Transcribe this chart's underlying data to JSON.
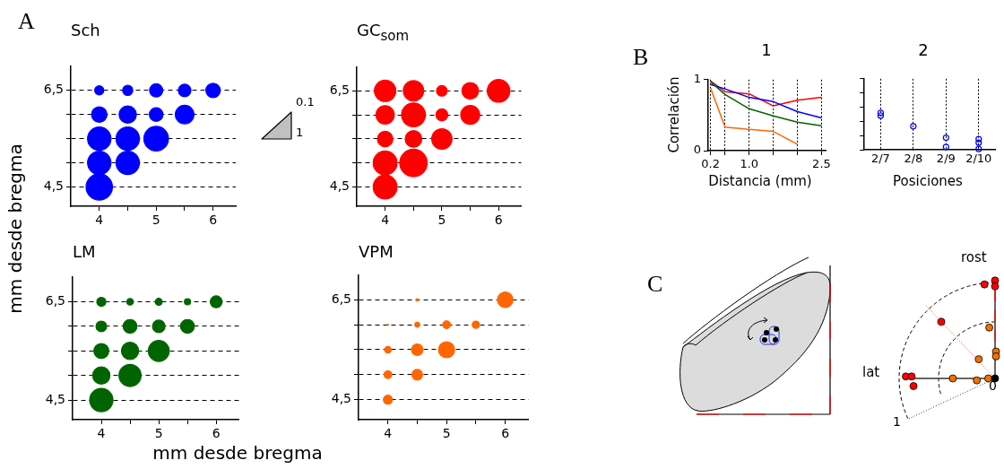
{
  "chart_data": [
    {
      "type": "bubble",
      "title": "Sch",
      "ylabel": "mm desde bregma",
      "annotations": [
        "A"
      ],
      "xlim": [
        3.5,
        6.4
      ],
      "ylim": [
        4.1,
        7.0
      ],
      "xticks": [
        4,
        {
          "value": 4.5,
          "label": null
        },
        5,
        {
          "value": 5.5,
          "label": null
        },
        6
      ],
      "yticks": [
        {
          "value": 4.5,
          "label": "4,5"
        },
        {
          "value": 5,
          "label": null
        },
        {
          "value": 5.5,
          "label": null
        },
        {
          "value": 6,
          "label": null
        },
        {
          "value": 6.5,
          "label": "6,5"
        }
      ],
      "grid": "y",
      "series": [
        {
          "color": "#0000ff",
          "x": [
            4,
            4.5,
            5,
            5.5,
            6,
            4,
            4.5,
            5,
            5.5,
            4,
            4.5,
            5,
            4,
            4.5,
            4
          ],
          "values": [
            6.5,
            6.5,
            6.5,
            6.5,
            6.5,
            6,
            6,
            6,
            6,
            5.5,
            5.5,
            5.5,
            5,
            5,
            4.5
          ],
          "sizes": [
            0.12,
            0.15,
            0.25,
            0.23,
            0.3,
            0.35,
            0.43,
            0.27,
            0.5,
            0.79,
            0.79,
            0.87,
            0.79,
            0.79,
            1
          ]
        }
      ]
    },
    {
      "type": "other",
      "annotations": [
        "0.1",
        "1"
      ]
    },
    {
      "type": "bubble",
      "title": "GC$_{som}$",
      "xlim": [
        3.5,
        6.4
      ],
      "ylim": [
        4.1,
        7.0
      ],
      "xticks": [
        4,
        {
          "value": 4.5,
          "label": null
        },
        5,
        {
          "value": 5.5,
          "label": null
        },
        6
      ],
      "yticks": [
        {
          "value": 4.5,
          "label": "4,5"
        },
        {
          "value": 5,
          "label": null
        },
        {
          "value": 5.5,
          "label": null
        },
        {
          "value": 6,
          "label": null
        },
        {
          "value": 6.5,
          "label": "6,5"
        }
      ],
      "grid": "y",
      "series": [
        {
          "color": "#ff0000",
          "x": [
            4,
            4.5,
            5,
            5.5,
            6,
            4,
            4.5,
            5,
            5.5,
            4,
            4.5,
            5,
            4,
            4.5,
            4
          ],
          "values": [
            6.5,
            6.5,
            6.5,
            6.5,
            6.5,
            6,
            6,
            6,
            6,
            5.5,
            5.5,
            5.5,
            5,
            5,
            4.5
          ],
          "sizes": [
            0.61,
            0.55,
            0.15,
            0.37,
            0.68,
            0.45,
            0.76,
            0.19,
            0.48,
            0.32,
            0.37,
            0.55,
            0.76,
            1,
            0.76
          ]
        }
      ]
    },
    {
      "type": "bubble",
      "title": "LM",
      "xlabel": "mm desde bregma",
      "xlim": [
        3.5,
        6.4
      ],
      "ylim": [
        4.1,
        7.0
      ],
      "xticks": [
        4,
        {
          "value": 4.5,
          "label": null
        },
        5,
        {
          "value": 5.5,
          "label": null
        },
        6
      ],
      "yticks": [
        {
          "value": 4.5,
          "label": "4,5"
        },
        {
          "value": 5,
          "label": null
        },
        {
          "value": 5.5,
          "label": null
        },
        {
          "value": 6,
          "label": null
        },
        {
          "value": 6.5,
          "label": "6,5"
        }
      ],
      "grid": "y",
      "series": [
        {
          "color": "#006400",
          "x": [
            4,
            4.5,
            5,
            5.5,
            6,
            4,
            4.5,
            5,
            5.5,
            4,
            4.5,
            5,
            4,
            4.5,
            4
          ],
          "values": [
            6.5,
            6.5,
            6.5,
            6.5,
            6.5,
            6,
            6,
            6,
            6,
            5.5,
            5.5,
            5.5,
            5,
            5,
            4.5
          ],
          "sizes": [
            0.15,
            0.08,
            0.09,
            0.07,
            0.26,
            0.21,
            0.35,
            0.29,
            0.35,
            0.41,
            0.55,
            0.81,
            0.55,
            0.9,
            1
          ]
        }
      ]
    },
    {
      "type": "bubble",
      "title": "VPM",
      "xlim": [
        3.5,
        6.4
      ],
      "ylim": [
        4.1,
        7.0
      ],
      "xticks": [
        4,
        {
          "value": 4.5,
          "label": null
        },
        5,
        {
          "value": 5.5,
          "label": null
        },
        6
      ],
      "yticks": [
        {
          "value": 4.5,
          "label": "4,5"
        },
        {
          "value": 5,
          "label": null
        },
        {
          "value": 5.5,
          "label": null
        },
        {
          "value": 6,
          "label": null
        },
        {
          "value": 6.5,
          "label": "6,5"
        }
      ],
      "grid": "y",
      "series": [
        {
          "color": "#ff6600",
          "x": [
            4.5,
            6,
            4,
            4.5,
            5,
            5.5,
            4,
            4.5,
            5,
            4,
            4.5,
            4
          ],
          "values": [
            6.5,
            6.5,
            6,
            6,
            6,
            6,
            5.5,
            5.5,
            5.5,
            5,
            5,
            4.5
          ],
          "sizes": [
            0.02,
            0.93,
            0.005,
            0.09,
            0.23,
            0.2,
            0.17,
            0.5,
            1,
            0.23,
            0.44,
            0.31
          ]
        }
      ]
    },
    {
      "type": "line",
      "title": "1",
      "xlabel": "Distancia (mm)",
      "ylabel": "Correlación",
      "annotations": [
        "B"
      ],
      "x": [
        0.2,
        0.5,
        1.0,
        1.5,
        2.0,
        2.5
      ],
      "xlim": [
        0.15,
        2.6
      ],
      "ylim": [
        0,
        1
      ],
      "xticks": [
        {
          "value": 0.2,
          "label": "0.2"
        },
        {
          "value": 0.5,
          "label": null
        },
        {
          "value": 1.0,
          "label": "1.0"
        },
        {
          "value": 1.5,
          "label": null
        },
        {
          "value": 2.0,
          "label": null
        },
        {
          "value": 2.5,
          "label": "2.5"
        }
      ],
      "yticks": [
        0,
        1
      ],
      "grid": "x",
      "series": [
        {
          "color": "#ff0000",
          "values": [
            0.98,
            0.83,
            0.8,
            0.63,
            0.71,
            0.75
          ]
        },
        {
          "color": "#0000ff",
          "values": [
            0.93,
            0.87,
            0.75,
            0.69,
            0.55,
            0.46
          ]
        },
        {
          "color": "#006400",
          "values": [
            0.97,
            0.79,
            0.59,
            0.49,
            0.4,
            0.35
          ]
        },
        {
          "color": "#ff6600",
          "values": [
            0.88,
            0.33,
            0.3,
            0.27,
            0.09,
            null
          ]
        }
      ]
    },
    {
      "type": "scatter",
      "title": "2",
      "xlabel": "Posiciones",
      "categories": [
        "2/7",
        "2/8",
        "2/9",
        "2/10"
      ],
      "ylim": [
        0,
        1
      ],
      "yticks": [
        {
          "value": 0,
          "label": null
        },
        {
          "value": 0.2,
          "label": null
        },
        {
          "value": 0.4,
          "label": null
        },
        {
          "value": 0.6,
          "label": null
        },
        {
          "value": 0.8,
          "label": null
        },
        {
          "value": 1,
          "label": null
        }
      ],
      "tick_labels": "x",
      "grid": "x",
      "marker": "circle",
      "series": [
        {
          "color": "#0000ff",
          "x": [
            "2/7",
            "2/7",
            "2/8",
            "2/9",
            "2/9",
            "2/10",
            "2/10",
            "2/10"
          ],
          "values": [
            0.52,
            0.48,
            0.33,
            0.17,
            0.04,
            0.15,
            0.1,
            0.01
          ]
        }
      ]
    },
    {
      "type": "other",
      "annotations": [
        "C",
        "lat",
        "rost",
        "0",
        "1"
      ]
    }
  ]
}
